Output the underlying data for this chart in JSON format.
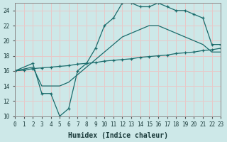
{
  "xlabel": "Humidex (Indice chaleur)",
  "xlim": [
    0,
    23
  ],
  "ylim": [
    10,
    25
  ],
  "xticks": [
    0,
    1,
    2,
    3,
    4,
    5,
    6,
    7,
    8,
    9,
    10,
    11,
    12,
    13,
    14,
    15,
    16,
    17,
    18,
    19,
    20,
    21,
    22,
    23
  ],
  "yticks": [
    10,
    12,
    14,
    16,
    18,
    20,
    22,
    24
  ],
  "background_color": "#cde8e8",
  "grid_color": "#e8c8c8",
  "line_color": "#1a6b6b",
  "line1_x": [
    0,
    1,
    2,
    3,
    4,
    5,
    6,
    7,
    8,
    9,
    10,
    11,
    12,
    13,
    14,
    15,
    16,
    17,
    18,
    19,
    20,
    21,
    22,
    23
  ],
  "line1_y": [
    16.0,
    16.1,
    16.3,
    16.4,
    16.5,
    16.6,
    16.7,
    16.9,
    17.0,
    17.1,
    17.3,
    17.4,
    17.5,
    17.6,
    17.8,
    17.9,
    18.0,
    18.1,
    18.3,
    18.4,
    18.5,
    18.7,
    18.8,
    19.0
  ],
  "line2_x": [
    0,
    2,
    3,
    4,
    5,
    6,
    7,
    8,
    9,
    10,
    11,
    12,
    13,
    14,
    15,
    16,
    17,
    18,
    19,
    20,
    21,
    22,
    23
  ],
  "line2_y": [
    16.0,
    16.5,
    14.0,
    14.0,
    14.0,
    14.5,
    15.5,
    16.5,
    17.5,
    18.5,
    19.5,
    20.5,
    21.0,
    21.5,
    22.0,
    22.0,
    21.5,
    21.0,
    20.5,
    20.0,
    19.5,
    18.5,
    18.5
  ],
  "line3_x": [
    0,
    2,
    3,
    4,
    5,
    6,
    7,
    8,
    9,
    10,
    11,
    12,
    13,
    14,
    15,
    16,
    17,
    18,
    19,
    20,
    21,
    22,
    23
  ],
  "line3_y": [
    16.0,
    17.0,
    13.0,
    13.0,
    10.0,
    11.0,
    16.0,
    17.0,
    19.0,
    22.0,
    23.0,
    25.0,
    25.0,
    24.5,
    24.5,
    25.0,
    24.5,
    24.0,
    24.0,
    23.5,
    23.0,
    19.5,
    19.5
  ],
  "marker": "+"
}
